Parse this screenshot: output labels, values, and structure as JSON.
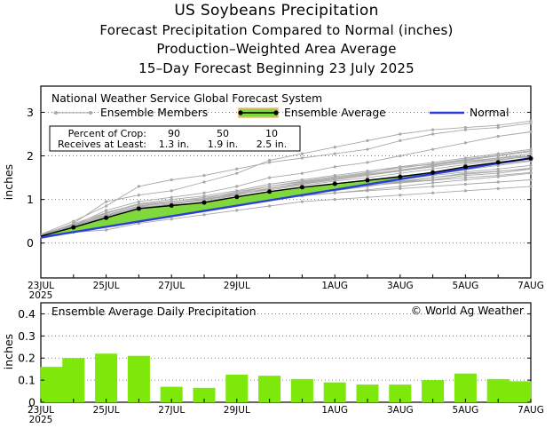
{
  "header": {
    "title": "US Soybeans Precipitation",
    "subtitle1": "Forecast Precipitation Compared to Normal (inches)",
    "subtitle2": "Production–Weighted Area Average",
    "subtitle3": "15–Day Forecast Beginning 23 July 2025"
  },
  "colors": {
    "member": "#a8a8a8",
    "average": "#000000",
    "band_fill": "#7fd93c",
    "band_edge": "#f2b570",
    "normal": "#2b3fd6",
    "bar": "#7de80a"
  },
  "chart_data": [
    {
      "type": "line",
      "name": "cumulative",
      "title": "National Weather Service Global Forecast System",
      "ylabel": "inches",
      "ylim": [
        -0.8,
        3.6
      ],
      "xlim": [
        0,
        15
      ],
      "yticks": [
        0,
        1,
        2,
        3
      ],
      "xticks": [
        {
          "x": 0,
          "label": "23JUL",
          "sub": "2025"
        },
        {
          "x": 2,
          "label": "25JUL"
        },
        {
          "x": 4,
          "label": "27JUL"
        },
        {
          "x": 6,
          "label": "29JUL"
        },
        {
          "x": 9,
          "label": "1AUG"
        },
        {
          "x": 11,
          "label": "3AUG"
        },
        {
          "x": 13,
          "label": "5AUG"
        },
        {
          "x": 15,
          "label": "7AUG"
        }
      ],
      "legend": {
        "members": "Ensemble Members",
        "average": "Ensemble Average",
        "normal": "Normal"
      },
      "percent_table": {
        "row1_label": "Percent of Crop:",
        "row2_label": "Receives at Least:",
        "percents": [
          "90",
          "50",
          "10"
        ],
        "amounts": [
          "1.3 in.",
          "1.9 in.",
          "2.5 in."
        ]
      },
      "ensemble_average": {
        "x": [
          0,
          1,
          2,
          3,
          4,
          5,
          6,
          7,
          8,
          9,
          10,
          11,
          12,
          13,
          14,
          15
        ],
        "y": [
          0.16,
          0.36,
          0.58,
          0.79,
          0.86,
          0.93,
          1.06,
          1.18,
          1.28,
          1.36,
          1.44,
          1.52,
          1.62,
          1.75,
          1.85,
          1.94
        ]
      },
      "normal": {
        "x": [
          0,
          15
        ],
        "y": [
          0.13,
          1.95
        ]
      },
      "members": [
        [
          0.2,
          0.5,
          0.85,
          1.3,
          1.45,
          1.55,
          1.7,
          1.85,
          1.95,
          2.05,
          2.15,
          2.35,
          2.5,
          2.6,
          2.65,
          2.75
        ],
        [
          0.15,
          0.45,
          0.95,
          1.1,
          1.2,
          1.4,
          1.6,
          1.9,
          2.05,
          2.2,
          2.35,
          2.5,
          2.6,
          2.65,
          2.7,
          2.8
        ],
        [
          0.18,
          0.4,
          0.75,
          0.95,
          1.05,
          1.15,
          1.3,
          1.5,
          1.6,
          1.75,
          1.85,
          2.0,
          2.15,
          2.3,
          2.45,
          2.55
        ],
        [
          0.12,
          0.3,
          0.45,
          0.6,
          0.7,
          0.8,
          0.95,
          1.05,
          1.1,
          1.15,
          1.2,
          1.25,
          1.3,
          1.35,
          1.4,
          1.45
        ],
        [
          0.1,
          0.25,
          0.3,
          0.45,
          0.55,
          0.65,
          0.75,
          0.85,
          0.95,
          1.0,
          1.05,
          1.1,
          1.15,
          1.2,
          1.25,
          1.3
        ],
        [
          0.14,
          0.35,
          0.5,
          0.7,
          0.85,
          0.9,
          1.0,
          1.1,
          1.2,
          1.3,
          1.35,
          1.4,
          1.5,
          1.6,
          1.65,
          1.7
        ],
        [
          0.16,
          0.38,
          0.6,
          0.75,
          0.9,
          1.0,
          1.1,
          1.25,
          1.35,
          1.45,
          1.55,
          1.65,
          1.75,
          1.85,
          1.95,
          2.0
        ],
        [
          0.2,
          0.42,
          0.65,
          0.85,
          0.95,
          1.05,
          1.15,
          1.3,
          1.4,
          1.5,
          1.6,
          1.75,
          1.85,
          1.95,
          2.05,
          2.15
        ],
        [
          0.13,
          0.33,
          0.55,
          0.72,
          0.8,
          0.85,
          0.95,
          1.05,
          1.15,
          1.2,
          1.3,
          1.4,
          1.45,
          1.55,
          1.6,
          1.7
        ],
        [
          0.17,
          0.4,
          0.62,
          0.8,
          0.9,
          0.98,
          1.12,
          1.22,
          1.32,
          1.42,
          1.5,
          1.6,
          1.7,
          1.8,
          1.9,
          2.0
        ],
        [
          0.15,
          0.36,
          0.58,
          0.82,
          0.88,
          0.92,
          1.02,
          1.15,
          1.25,
          1.33,
          1.42,
          1.5,
          1.58,
          1.68,
          1.78,
          1.88
        ],
        [
          0.19,
          0.44,
          0.7,
          0.9,
          1.0,
          1.08,
          1.2,
          1.35,
          1.45,
          1.55,
          1.65,
          1.75,
          1.8,
          1.9,
          2.0,
          2.1
        ],
        [
          0.11,
          0.3,
          0.5,
          0.65,
          0.75,
          0.82,
          0.9,
          1.0,
          1.08,
          1.15,
          1.22,
          1.3,
          1.38,
          1.45,
          1.52,
          1.6
        ],
        [
          0.16,
          0.37,
          0.6,
          0.78,
          0.85,
          0.95,
          1.1,
          1.25,
          1.38,
          1.48,
          1.58,
          1.68,
          1.78,
          1.88,
          1.95,
          2.05
        ],
        [
          0.14,
          0.34,
          0.52,
          0.7,
          0.8,
          0.88,
          1.0,
          1.12,
          1.2,
          1.28,
          1.35,
          1.42,
          1.5,
          1.58,
          1.64,
          1.72
        ],
        [
          0.18,
          0.4,
          0.68,
          0.88,
          0.96,
          1.02,
          1.18,
          1.3,
          1.42,
          1.52,
          1.62,
          1.72,
          1.82,
          1.92,
          2.02,
          2.12
        ],
        [
          0.12,
          0.32,
          0.48,
          0.68,
          0.78,
          0.86,
          0.98,
          1.1,
          1.18,
          1.26,
          1.32,
          1.38,
          1.44,
          1.5,
          1.55,
          1.62
        ],
        [
          0.17,
          0.39,
          0.63,
          0.84,
          0.92,
          1.0,
          1.14,
          1.26,
          1.36,
          1.46,
          1.56,
          1.66,
          1.76,
          1.84,
          1.92,
          1.98
        ],
        [
          0.15,
          0.35,
          0.56,
          0.76,
          0.84,
          0.92,
          1.04,
          1.16,
          1.26,
          1.34,
          1.44,
          1.54,
          1.62,
          1.72,
          1.82,
          1.9
        ],
        [
          0.13,
          0.31,
          0.52,
          0.73,
          0.83,
          0.9,
          1.0,
          1.12,
          1.22,
          1.3,
          1.38,
          1.46,
          1.55,
          1.63,
          1.7,
          1.78
        ]
      ]
    },
    {
      "type": "bar",
      "name": "daily",
      "title": "Ensemble Average Daily Precipitation",
      "credit": "© World Ag Weather",
      "ylabel": "inches",
      "ylim": [
        0,
        0.45
      ],
      "yticks": [
        "0",
        "0.1",
        "0.2",
        "0.3",
        "0.4"
      ],
      "categories": [
        "23JUL",
        "24JUL",
        "25JUL",
        "26JUL",
        "27JUL",
        "28JUL",
        "29JUL",
        "30JUL",
        "31JUL",
        "1AUG",
        "2AUG",
        "3AUG",
        "4AUG",
        "5AUG",
        "6AUG",
        "7AUG"
      ],
      "values": [
        0.16,
        0.2,
        0.22,
        0.21,
        0.07,
        0.065,
        0.125,
        0.12,
        0.105,
        0.09,
        0.08,
        0.08,
        0.1,
        0.13,
        0.105,
        0.095
      ],
      "xticks": [
        {
          "x": 0,
          "label": "23JUL",
          "sub": "2025"
        },
        {
          "x": 2,
          "label": "25JUL"
        },
        {
          "x": 4,
          "label": "27JUL"
        },
        {
          "x": 6,
          "label": "29JUL"
        },
        {
          "x": 9,
          "label": "1AUG"
        },
        {
          "x": 11,
          "label": "3AUG"
        },
        {
          "x": 13,
          "label": "5AUG"
        },
        {
          "x": 15,
          "label": "7AUG"
        }
      ]
    }
  ]
}
